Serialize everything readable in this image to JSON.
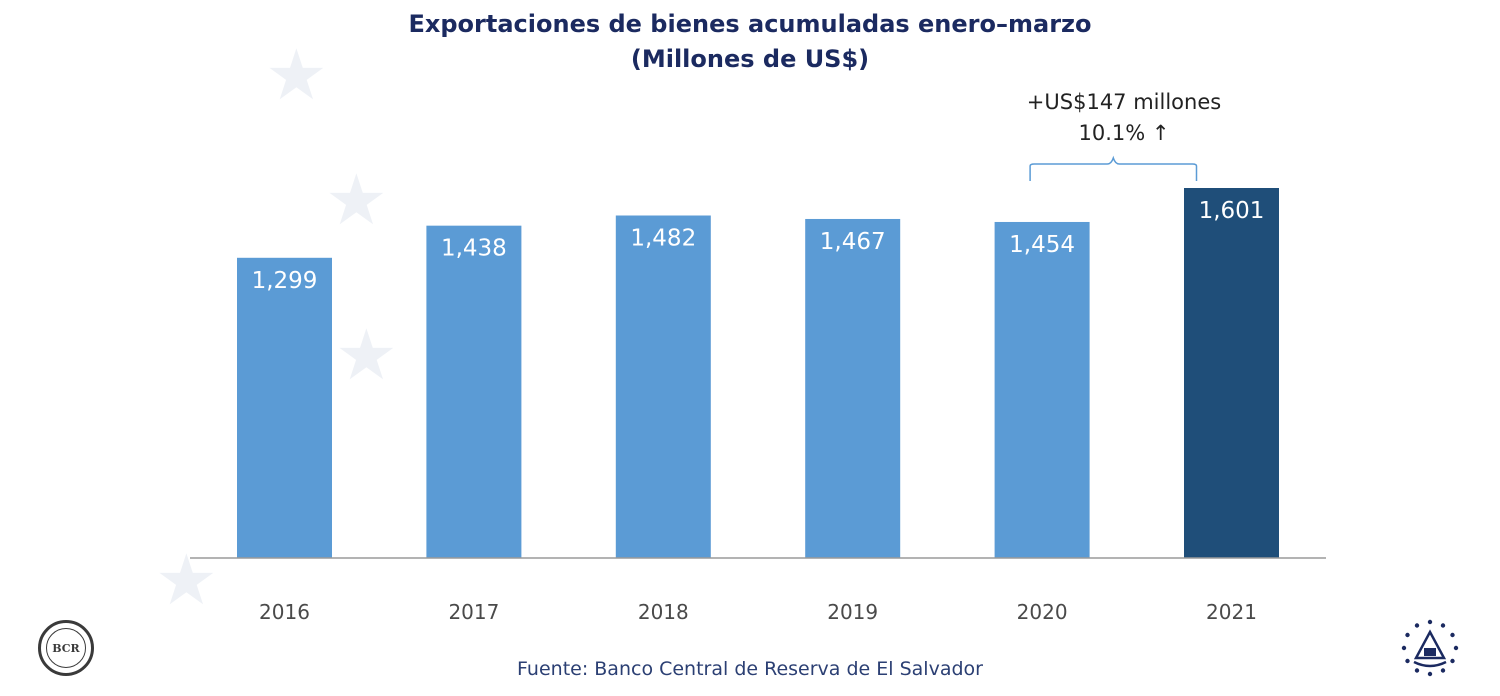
{
  "title": {
    "line1": "Exportaciones de bienes acumuladas enero–marzo",
    "line2": "(Millones de US$)"
  },
  "annotation": {
    "line1": "+US$147 millones",
    "line2": "10.1% ↑"
  },
  "source": "Fuente: Banco Central de Reserva de El Salvador",
  "logos": {
    "left": "BCR",
    "left_icon": "bcr-seal-icon",
    "right_icon": "el-salvador-emblem-icon"
  },
  "colors": {
    "bar": "#5b9bd5",
    "highlight_bar": "#1f4e79",
    "title": "#1b2a60",
    "axis": "#9a9a9a",
    "bracket": "#5b9bd5"
  },
  "chart_data": {
    "type": "bar",
    "categories": [
      "2016",
      "2017",
      "2018",
      "2019",
      "2020",
      "2021"
    ],
    "values": [
      1299,
      1438,
      1482,
      1467,
      1454,
      1601
    ],
    "value_labels": [
      "1,299",
      "1,438",
      "1,482",
      "1,467",
      "1,454",
      "1,601"
    ],
    "highlight_category": "2021",
    "title": "Exportaciones de bienes acumuladas enero–marzo (Millones de US$)",
    "xlabel": "",
    "ylabel": "",
    "ylim": [
      0,
      1601
    ],
    "grid": false,
    "legend": "none",
    "annotations": [
      "+US$147 millones",
      "10.1% ↑"
    ]
  }
}
